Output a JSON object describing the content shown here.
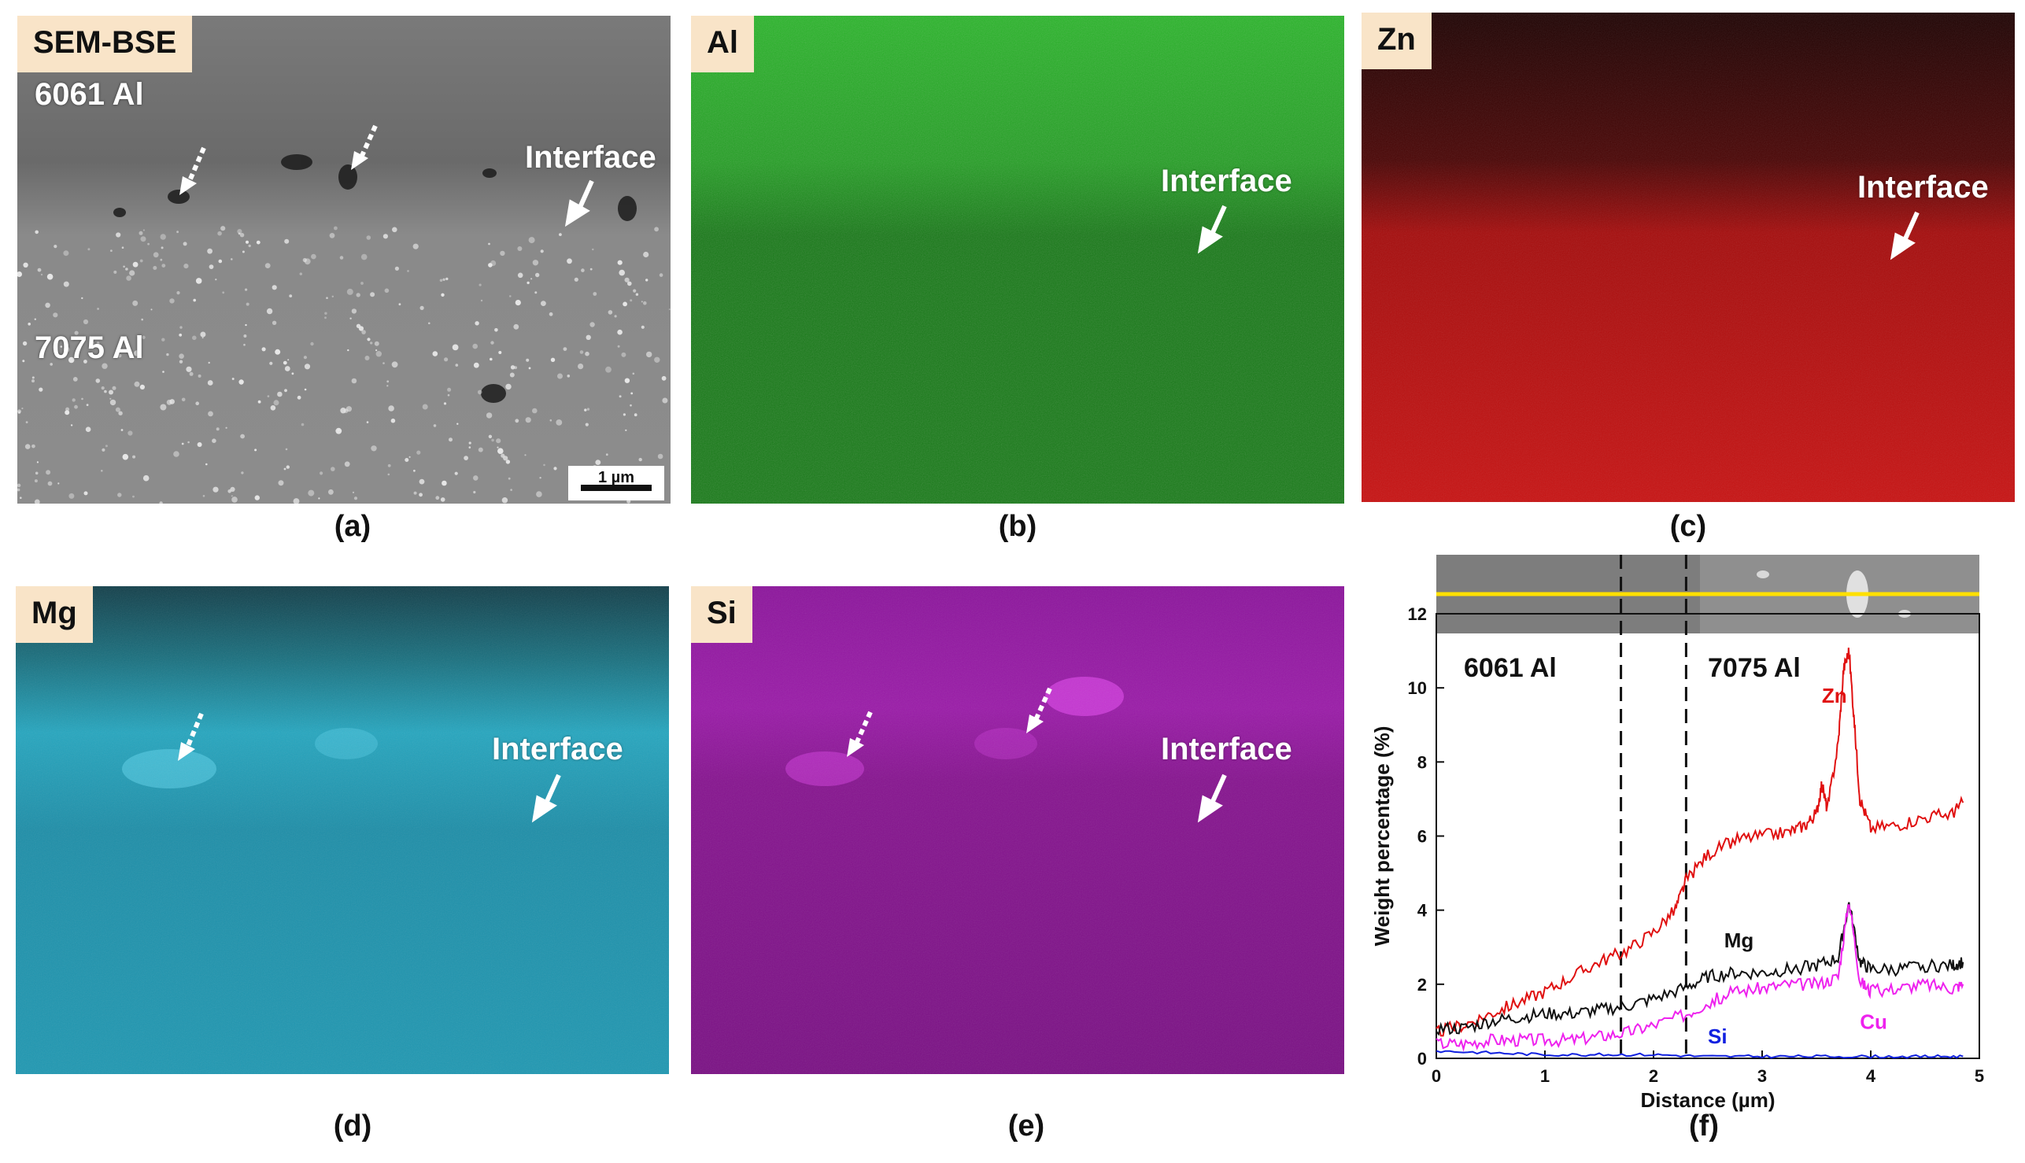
{
  "panels": {
    "a": {
      "badge": "SEM-BSE",
      "top_sample": "6061 Al",
      "bottom_sample": "7075 Al",
      "interface": "Interface",
      "scale_bar": "1 µm",
      "caption": "(a)"
    },
    "b": {
      "badge": "Al",
      "interface": "Interface",
      "caption": "(b)",
      "color": "#1fa51f"
    },
    "c": {
      "badge": "Zn",
      "interface": "Interface",
      "caption": "(c)",
      "color": "#c81212"
    },
    "d": {
      "badge": "Mg",
      "interface": "Interface",
      "caption": "(d)",
      "color": "#1fa0b8"
    },
    "e": {
      "badge": "Si",
      "interface": "Interface",
      "caption": "(e)",
      "color": "#8a1098"
    },
    "f": {
      "caption": "(f)"
    }
  },
  "chart_data": {
    "type": "line",
    "xlabel": "Distance (µm)",
    "ylabel": "Weight percentage (%)",
    "xlim": [
      0,
      5
    ],
    "ylim": [
      0,
      12
    ],
    "xticks": [
      "0",
      "1",
      "2",
      "3",
      "4",
      "5"
    ],
    "yticks": [
      "0",
      "2",
      "4",
      "6",
      "8",
      "10",
      "12"
    ],
    "region_labels": [
      "6061 Al",
      "7075 Al"
    ],
    "interface_lines_x": [
      1.7,
      2.3
    ],
    "series": [
      {
        "name": "Zn",
        "color": "#e01010",
        "x": [
          0,
          0.25,
          0.5,
          0.75,
          1.0,
          1.25,
          1.5,
          1.75,
          2.0,
          2.2,
          2.3,
          2.5,
          2.75,
          3.0,
          3.25,
          3.4,
          3.5,
          3.55,
          3.6,
          3.7,
          3.75,
          3.8,
          3.85,
          3.9,
          4.0,
          4.25,
          4.5,
          4.75,
          4.85
        ],
        "y": [
          0.7,
          0.9,
          1.2,
          1.5,
          1.8,
          2.2,
          2.6,
          2.9,
          3.4,
          4.0,
          4.8,
          5.5,
          5.9,
          6.0,
          6.1,
          6.3,
          6.6,
          7.4,
          6.7,
          8.5,
          10.5,
          11.0,
          9.0,
          7.0,
          6.2,
          6.3,
          6.5,
          6.6,
          6.9
        ]
      },
      {
        "name": "Mg",
        "color": "#111111",
        "x": [
          0,
          0.25,
          0.5,
          0.75,
          1.0,
          1.25,
          1.5,
          1.75,
          2.0,
          2.3,
          2.5,
          2.75,
          3.0,
          3.25,
          3.5,
          3.7,
          3.8,
          3.9,
          4.0,
          4.25,
          4.5,
          4.75,
          4.85
        ],
        "y": [
          0.8,
          0.8,
          1.0,
          1.1,
          1.2,
          1.2,
          1.3,
          1.4,
          1.6,
          1.9,
          2.2,
          2.3,
          2.3,
          2.4,
          2.5,
          2.7,
          4.2,
          2.6,
          2.4,
          2.4,
          2.5,
          2.5,
          2.6
        ]
      },
      {
        "name": "Cu",
        "color": "#ee22ee",
        "x": [
          0,
          0.25,
          0.5,
          0.75,
          1.0,
          1.25,
          1.5,
          1.75,
          2.0,
          2.3,
          2.5,
          2.75,
          3.0,
          3.25,
          3.5,
          3.7,
          3.8,
          3.9,
          4.0,
          4.25,
          4.5,
          4.75,
          4.85
        ],
        "y": [
          0.4,
          0.4,
          0.5,
          0.5,
          0.5,
          0.5,
          0.6,
          0.7,
          0.9,
          1.2,
          1.5,
          1.8,
          1.9,
          2.0,
          2.0,
          2.2,
          4.3,
          2.1,
          1.8,
          1.9,
          2.0,
          1.9,
          2.0
        ]
      },
      {
        "name": "Si",
        "color": "#1020e0",
        "x": [
          0,
          0.5,
          1.0,
          1.5,
          2.0,
          2.5,
          3.0,
          3.5,
          4.0,
          4.5,
          4.85
        ],
        "y": [
          0.2,
          0.15,
          0.1,
          0.1,
          0.1,
          0.05,
          0.05,
          0.05,
          0.05,
          0.05,
          0.05
        ]
      }
    ]
  }
}
